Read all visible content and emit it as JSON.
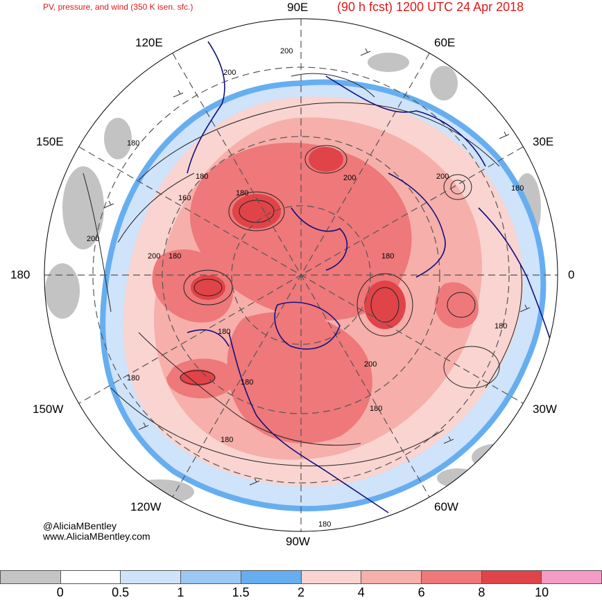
{
  "header": {
    "product": "PV, pressure, and wind (350 K isen. sfc.)",
    "valid": "(90 h fcst) 1200 UTC 24 Apr 2018"
  },
  "longitude_labels": {
    "e90": "90E",
    "e60": "60E",
    "e30": "30E",
    "zero": "0",
    "w30": "30W",
    "w60": "60W",
    "w90": "90W",
    "w120": "120W",
    "w150": "150W",
    "d180": "180",
    "e150": "150E",
    "e120": "120E"
  },
  "contour_labels": [
    "200",
    "200",
    "180",
    "180",
    "160",
    "180",
    "200",
    "200",
    "180",
    "200",
    "180",
    "180",
    "180",
    "200",
    "180",
    "180",
    "180",
    "180",
    "200",
    "180",
    "180"
  ],
  "credit": {
    "handle": "@AliciaMBentley",
    "site": "www.AliciaMBentley.com"
  },
  "colorbar": {
    "swatches": [
      "#c4c4c4",
      "#ffffff",
      "#cfe3fa",
      "#9cc8f4",
      "#66aef0",
      "#f9d4d0",
      "#f6afaa",
      "#ee787a",
      "#e04448",
      "#f49cc6"
    ],
    "ticks": [
      "0",
      "0.5",
      "1",
      "1.5",
      "2",
      "4",
      "6",
      "8",
      "10"
    ]
  }
}
